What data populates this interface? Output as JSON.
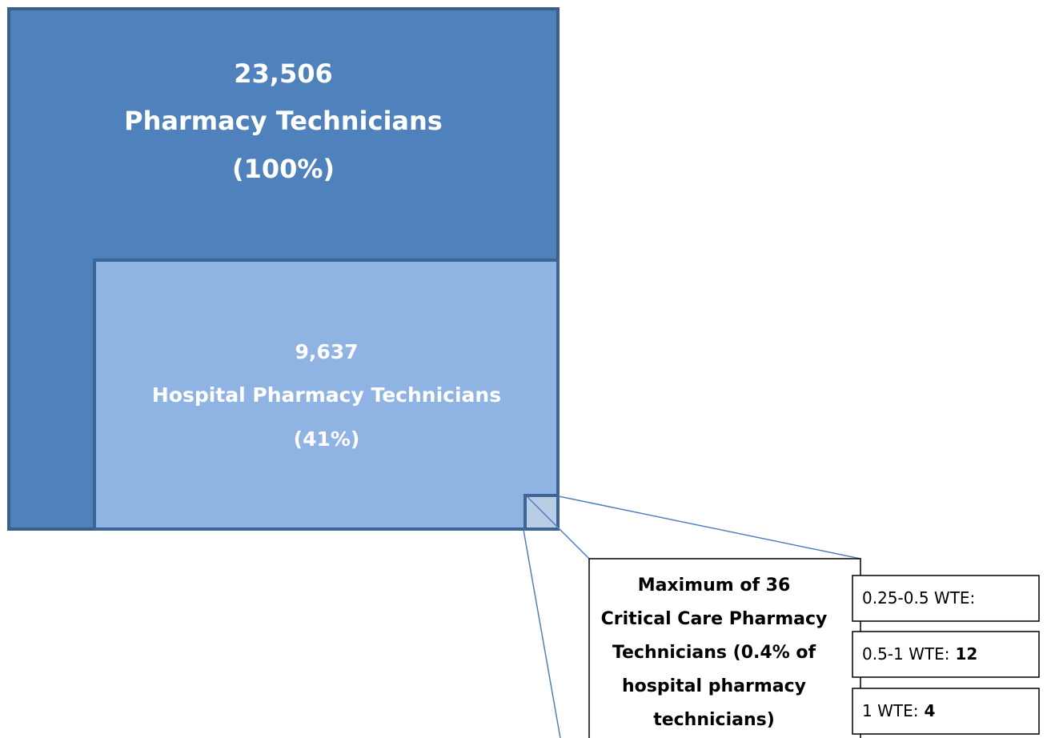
{
  "total": {
    "count": "23,506",
    "label": "Pharmacy Technicians",
    "share": "(100%)"
  },
  "hospital": {
    "count": "9,637",
    "label": "Hospital Pharmacy Technicians",
    "share": "(41%)"
  },
  "critical_care": {
    "lines": [
      "Maximum of 36",
      "Critical Care Pharmacy",
      "Technicians (0.4% of",
      "hospital pharmacy",
      "technicians)"
    ]
  },
  "wte": [
    {
      "label": "0.25-0.5 WTE:"
    },
    {
      "label": "0.5-1 WTE:",
      "value": "12"
    },
    {
      "label": "1 WTE:",
      "value": "4"
    }
  ]
}
